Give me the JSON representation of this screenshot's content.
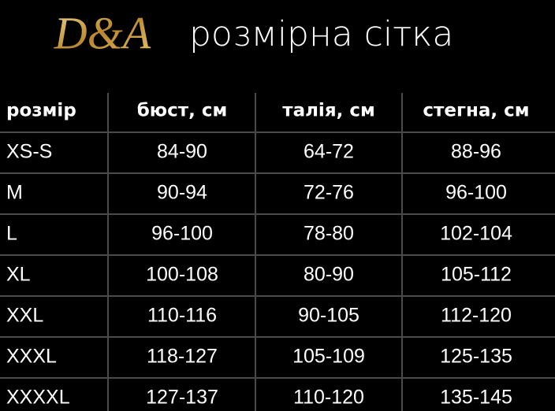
{
  "header": {
    "logo": "D&A",
    "title": "розмірна сітка"
  },
  "table": {
    "columns": [
      "розмір",
      "бюст, см",
      "талія, см",
      "стегна, см"
    ],
    "rows": [
      [
        "XS-S",
        "84-90",
        "64-72",
        "88-96"
      ],
      [
        "M",
        "90-94",
        "72-76",
        "96-100"
      ],
      [
        "L",
        "96-100",
        "78-80",
        "102-104"
      ],
      [
        "XL",
        "100-108",
        "80-90",
        "105-112"
      ],
      [
        "XXL",
        "110-116",
        "90-105",
        "112-120"
      ],
      [
        "XXXL",
        "118-127",
        "105-109",
        "125-135"
      ],
      [
        "XXXXL",
        "127-137",
        "110-120",
        "135-145"
      ]
    ]
  }
}
